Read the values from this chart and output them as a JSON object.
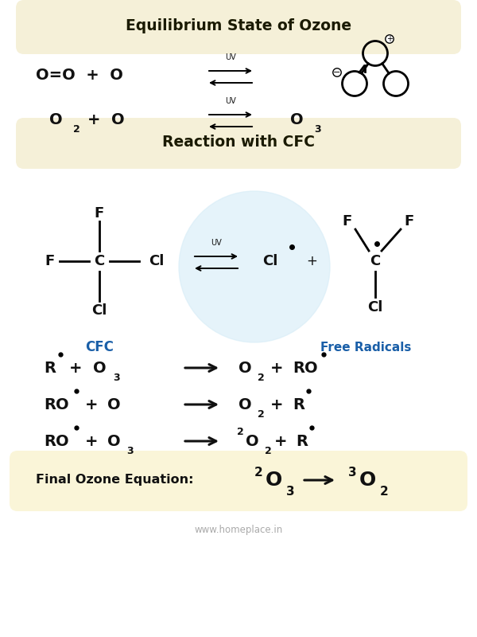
{
  "bg_color": "#ffffff",
  "header_bg": "#f5f0d8",
  "title1": "Equilibrium State of Ozone",
  "title2": "Reaction with CFC",
  "title_color": "#1a1a00",
  "text_color": "#111111",
  "blue_color": "#1a5fa8",
  "watermark_color": "#daeef8",
  "footer_text": "www.homeplace.in",
  "final_box_bg": "#faf5d8"
}
